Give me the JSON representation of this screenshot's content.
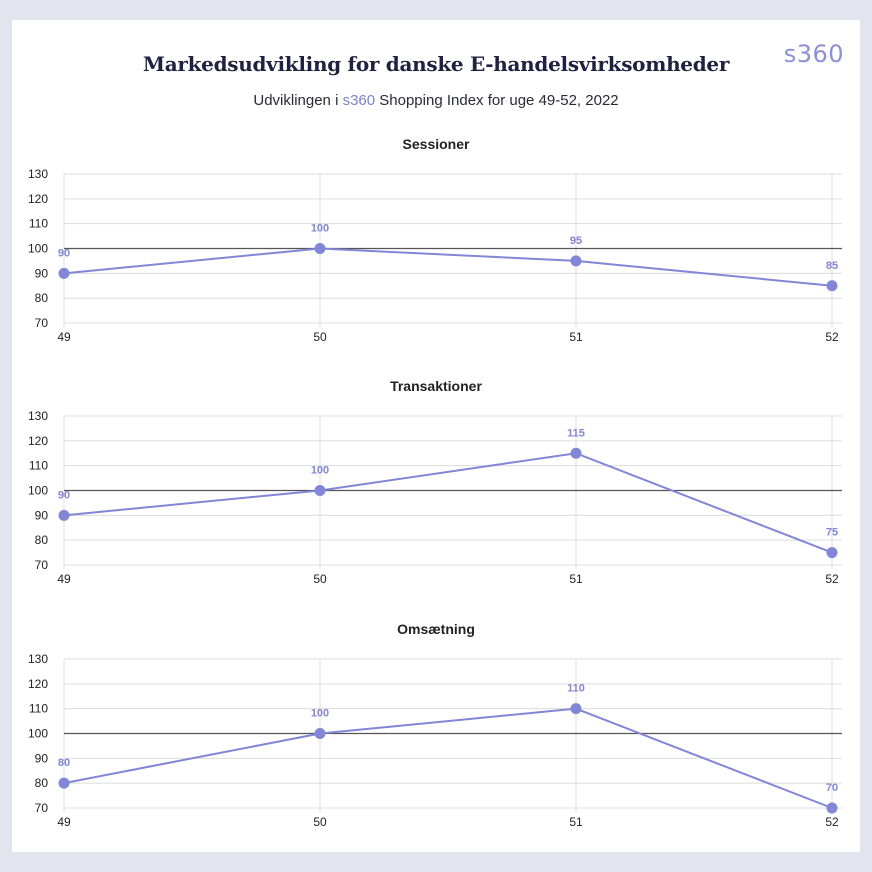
{
  "header": {
    "title": "Markedsudvikling for danske E-handelsvirksomheder",
    "subtitle_prefix": "Udviklingen i ",
    "subtitle_brand": "s360",
    "subtitle_suffix": " Shopping Index for uge 49-52, 2022",
    "logo_text": "s360"
  },
  "colors": {
    "series": "#8186d6",
    "reference_line": "#555555",
    "grid": "#dcdcdc",
    "text": "#222222"
  },
  "chart_data": [
    {
      "type": "line",
      "title": "Sessioner",
      "categories": [
        "49",
        "50",
        "51",
        "52"
      ],
      "series": [
        {
          "values": [
            90,
            100,
            95,
            85
          ]
        }
      ],
      "ylim": [
        70,
        130
      ],
      "yticks": [
        70,
        80,
        90,
        100,
        110,
        120,
        130
      ],
      "reference_y": 100,
      "grid": true,
      "data_labels": true
    },
    {
      "type": "line",
      "title": "Transaktioner",
      "categories": [
        "49",
        "50",
        "51",
        "52"
      ],
      "series": [
        {
          "values": [
            90,
            100,
            115,
            75
          ]
        }
      ],
      "ylim": [
        70,
        130
      ],
      "yticks": [
        70,
        80,
        90,
        100,
        110,
        120,
        130
      ],
      "reference_y": 100,
      "grid": true,
      "data_labels": true
    },
    {
      "type": "line",
      "title": "Omsætning",
      "categories": [
        "49",
        "50",
        "51",
        "52"
      ],
      "series": [
        {
          "values": [
            80,
            100,
            110,
            70
          ]
        }
      ],
      "ylim": [
        70,
        130
      ],
      "yticks": [
        70,
        80,
        90,
        100,
        110,
        120,
        130
      ],
      "reference_y": 100,
      "grid": true,
      "data_labels": true
    }
  ]
}
